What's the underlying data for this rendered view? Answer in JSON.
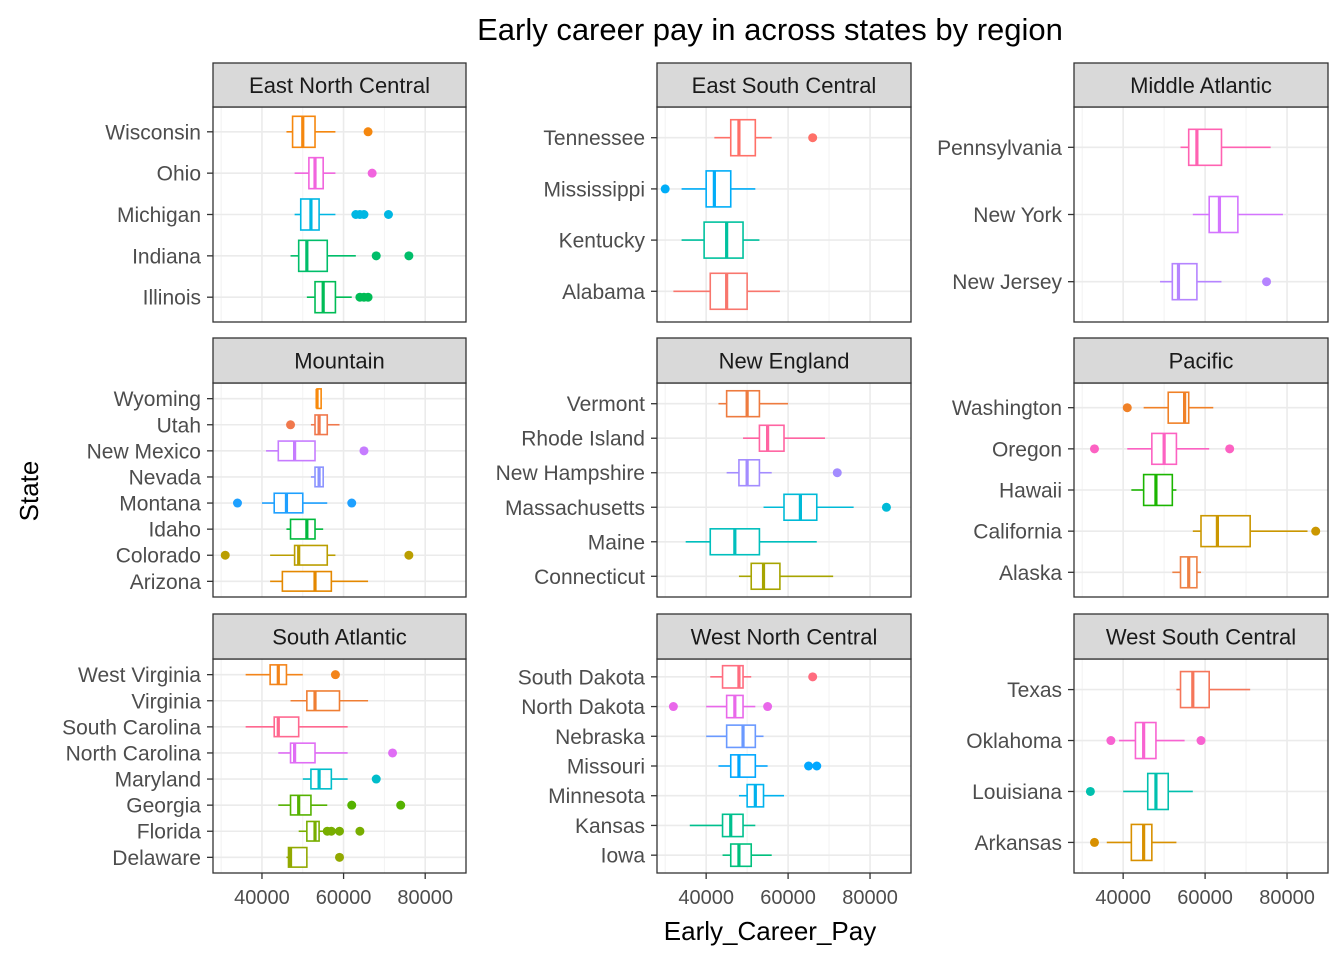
{
  "chart_data": {
    "type": "boxplot",
    "title": "Early career pay in across states by region",
    "xlabel": "Early_Career_Pay",
    "ylabel": "State",
    "xlim": [
      28000,
      90000
    ],
    "x_ticks": [
      40000,
      60000,
      80000
    ],
    "x_tick_labels": [
      "40000",
      "60000",
      "80000"
    ],
    "grid": true,
    "theme": "bw",
    "state_colors": {
      "Alabama": "#F8766D",
      "Alaska": "#EE8044",
      "Arizona": "#E48800",
      "Arkansas": "#D89000",
      "California": "#CB9700",
      "Colorado": "#BA9E00",
      "Connecticut": "#A7A400",
      "Delaware": "#92A900",
      "Florida": "#78AE00",
      "Georgia": "#55B200",
      "Hawaii": "#1BB500",
      "Idaho": "#00B93D",
      "Illinois": "#00BC56",
      "Indiana": "#00BE6A",
      "Iowa": "#00C07D",
      "Kansas": "#00C08E",
      "Kentucky": "#00C19E",
      "Louisiana": "#00C0AE",
      "Maine": "#00BFBD",
      "Maryland": "#00BDCA",
      "Massachusetts": "#00BAD7",
      "Michigan": "#00B7E3",
      "Minnesota": "#00B2EE",
      "Mississippi": "#00ADF8",
      "Missouri": "#00A7FF",
      "Montana": "#1EA0FF",
      "Nebraska": "#6A99FF",
      "Nevada": "#8B93FF",
      "New Hampshire": "#A38CFF",
      "New Jersey": "#B584FF",
      "New Mexico": "#C67CFF",
      "New York": "#D474FF",
      "North Carolina": "#E06DF5",
      "North Dakota": "#E968EA",
      "Ohio": "#F164DE",
      "Oklahoma": "#F863D1",
      "Oregon": "#FC62C2",
      "Pennsylvania": "#FF62B2",
      "Rhode Island": "#FF64A2",
      "South Carolina": "#FF6890",
      "South Dakota": "#FF6C7F",
      "Tennessee": "#FF7068",
      "Texas": "#F5765A",
      "Utah": "#F0784C",
      "Vermont": "#EE7B3F",
      "Virginia": "#EF7E33",
      "Washington": "#F08127",
      "West Virginia": "#F3841A",
      "Wisconsin": "#F5870E",
      "Wyoming": "#F8890B"
    },
    "panels": [
      {
        "region": "East North Central",
        "states": [
          {
            "state": "Illinois",
            "whisker_low": 51000,
            "q1": 53000,
            "median": 55000,
            "q3": 58000,
            "whisker_high": 62000,
            "outliers": [
              64000,
              65000,
              66000
            ]
          },
          {
            "state": "Indiana",
            "whisker_low": 47000,
            "q1": 49000,
            "median": 51000,
            "q3": 56000,
            "whisker_high": 63000,
            "outliers": [
              68000,
              76000
            ]
          },
          {
            "state": "Michigan",
            "whisker_low": 48000,
            "q1": 49500,
            "median": 52000,
            "q3": 54000,
            "whisker_high": 58000,
            "outliers": [
              63000,
              64000,
              65000,
              71000
            ]
          },
          {
            "state": "Ohio",
            "whisker_low": 48000,
            "q1": 51500,
            "median": 53000,
            "q3": 55000,
            "whisker_high": 58000,
            "outliers": [
              67000
            ]
          },
          {
            "state": "Wisconsin",
            "whisker_low": 46000,
            "q1": 47500,
            "median": 50000,
            "q3": 53000,
            "whisker_high": 58000,
            "outliers": [
              66000
            ]
          }
        ]
      },
      {
        "region": "East South Central",
        "states": [
          {
            "state": "Alabama",
            "whisker_low": 32000,
            "q1": 41000,
            "median": 45000,
            "q3": 50000,
            "whisker_high": 58000,
            "outliers": []
          },
          {
            "state": "Kentucky",
            "whisker_low": 34000,
            "q1": 39500,
            "median": 45000,
            "q3": 49000,
            "whisker_high": 53000,
            "outliers": []
          },
          {
            "state": "Mississippi",
            "whisker_low": 34000,
            "q1": 40000,
            "median": 42000,
            "q3": 46000,
            "whisker_high": 52000,
            "outliers": [
              30000
            ]
          },
          {
            "state": "Tennessee",
            "whisker_low": 42000,
            "q1": 46000,
            "median": 48000,
            "q3": 52000,
            "whisker_high": 56000,
            "outliers": [
              66000
            ]
          }
        ]
      },
      {
        "region": "Middle Atlantic",
        "states": [
          {
            "state": "New Jersey",
            "whisker_low": 49000,
            "q1": 52000,
            "median": 53500,
            "q3": 58000,
            "whisker_high": 64000,
            "outliers": [
              75000
            ]
          },
          {
            "state": "New York",
            "whisker_low": 57000,
            "q1": 61000,
            "median": 63500,
            "q3": 68000,
            "whisker_high": 79000,
            "outliers": []
          },
          {
            "state": "Pennsylvania",
            "whisker_low": 54000,
            "q1": 56000,
            "median": 58000,
            "q3": 64000,
            "whisker_high": 76000,
            "outliers": []
          }
        ]
      },
      {
        "region": "Mountain",
        "states": [
          {
            "state": "Arizona",
            "whisker_low": 42000,
            "q1": 45000,
            "median": 53000,
            "q3": 57000,
            "whisker_high": 66000,
            "outliers": []
          },
          {
            "state": "Colorado",
            "whisker_low": 42000,
            "q1": 48000,
            "median": 49000,
            "q3": 56000,
            "whisker_high": 58000,
            "outliers": [
              31000,
              76000
            ]
          },
          {
            "state": "Idaho",
            "whisker_low": 46000,
            "q1": 47000,
            "median": 51000,
            "q3": 53000,
            "whisker_high": 55000,
            "outliers": []
          },
          {
            "state": "Montana",
            "whisker_low": 40000,
            "q1": 43000,
            "median": 46000,
            "q3": 50000,
            "whisker_high": 56000,
            "outliers": [
              34000,
              62000
            ]
          },
          {
            "state": "Nevada",
            "whisker_low": 52000,
            "q1": 53000,
            "median": 54000,
            "q3": 55000,
            "whisker_high": 55000,
            "outliers": []
          },
          {
            "state": "New Mexico",
            "whisker_low": 41000,
            "q1": 44000,
            "median": 48000,
            "q3": 53000,
            "whisker_high": 53000,
            "outliers": [
              65000
            ]
          },
          {
            "state": "Utah",
            "whisker_low": 52000,
            "q1": 53000,
            "median": 54000,
            "q3": 56000,
            "whisker_high": 59000,
            "outliers": [
              47000
            ]
          },
          {
            "state": "Wyoming",
            "whisker_low": 53500,
            "q1": 53500,
            "median": 53500,
            "q3": 54500,
            "whisker_high": 54500,
            "outliers": []
          }
        ]
      },
      {
        "region": "New England",
        "states": [
          {
            "state": "Connecticut",
            "whisker_low": 48000,
            "q1": 51000,
            "median": 54000,
            "q3": 58000,
            "whisker_high": 71000,
            "outliers": []
          },
          {
            "state": "Maine",
            "whisker_low": 35000,
            "q1": 41000,
            "median": 47000,
            "q3": 53000,
            "whisker_high": 67000,
            "outliers": []
          },
          {
            "state": "Massachusetts",
            "whisker_low": 54000,
            "q1": 59000,
            "median": 63000,
            "q3": 67000,
            "whisker_high": 76000,
            "outliers": [
              84000
            ]
          },
          {
            "state": "New Hampshire",
            "whisker_low": 45000,
            "q1": 48000,
            "median": 50000,
            "q3": 53000,
            "whisker_high": 56000,
            "outliers": [
              72000
            ]
          },
          {
            "state": "Rhode Island",
            "whisker_low": 49000,
            "q1": 53000,
            "median": 55000,
            "q3": 59000,
            "whisker_high": 69000,
            "outliers": []
          },
          {
            "state": "Vermont",
            "whisker_low": 43000,
            "q1": 45000,
            "median": 50000,
            "q3": 53000,
            "whisker_high": 60000,
            "outliers": []
          }
        ]
      },
      {
        "region": "Pacific",
        "states": [
          {
            "state": "Alaska",
            "whisker_low": 52000,
            "q1": 54000,
            "median": 56000,
            "q3": 58000,
            "whisker_high": 59000,
            "outliers": []
          },
          {
            "state": "California",
            "whisker_low": 57000,
            "q1": 59000,
            "median": 63000,
            "q3": 71000,
            "whisker_high": 85000,
            "outliers": [
              87000
            ]
          },
          {
            "state": "Hawaii",
            "whisker_low": 42000,
            "q1": 45000,
            "median": 48000,
            "q3": 52000,
            "whisker_high": 53000,
            "outliers": []
          },
          {
            "state": "Oregon",
            "whisker_low": 41000,
            "q1": 47000,
            "median": 50000,
            "q3": 53000,
            "whisker_high": 61000,
            "outliers": [
              33000,
              66000
            ]
          },
          {
            "state": "Washington",
            "whisker_low": 45000,
            "q1": 51000,
            "median": 55000,
            "q3": 56000,
            "whisker_high": 62000,
            "outliers": [
              41000
            ]
          }
        ]
      },
      {
        "region": "South Atlantic",
        "states": [
          {
            "state": "Delaware",
            "whisker_low": 46000,
            "q1": 46500,
            "median": 47000,
            "q3": 51000,
            "whisker_high": 51000,
            "outliers": [
              59000
            ]
          },
          {
            "state": "Florida",
            "whisker_low": 49000,
            "q1": 51000,
            "median": 53000,
            "q3": 54000,
            "whisker_high": 55000,
            "outliers": [
              56000,
              57000,
              59000,
              64000
            ]
          },
          {
            "state": "Georgia",
            "whisker_low": 44000,
            "q1": 47000,
            "median": 49000,
            "q3": 52000,
            "whisker_high": 56000,
            "outliers": [
              62000,
              74000
            ]
          },
          {
            "state": "Maryland",
            "whisker_low": 50000,
            "q1": 52000,
            "median": 54000,
            "q3": 57000,
            "whisker_high": 61000,
            "outliers": [
              68000
            ]
          },
          {
            "state": "North Carolina",
            "whisker_low": 44000,
            "q1": 47000,
            "median": 48000,
            "q3": 53000,
            "whisker_high": 61000,
            "outliers": [
              72000
            ]
          },
          {
            "state": "South Carolina",
            "whisker_low": 36000,
            "q1": 43000,
            "median": 44000,
            "q3": 49000,
            "whisker_high": 61000,
            "outliers": []
          },
          {
            "state": "Virginia",
            "whisker_low": 47000,
            "q1": 51000,
            "median": 53000,
            "q3": 59000,
            "whisker_high": 66000,
            "outliers": []
          },
          {
            "state": "West Virginia",
            "whisker_low": 36000,
            "q1": 42000,
            "median": 44000,
            "q3": 46000,
            "whisker_high": 50000,
            "outliers": [
              58000
            ]
          }
        ]
      },
      {
        "region": "West North Central",
        "states": [
          {
            "state": "Iowa",
            "whisker_low": 44000,
            "q1": 46000,
            "median": 48000,
            "q3": 51000,
            "whisker_high": 56000,
            "outliers": []
          },
          {
            "state": "Kansas",
            "whisker_low": 36000,
            "q1": 44000,
            "median": 46000,
            "q3": 49000,
            "whisker_high": 52000,
            "outliers": []
          },
          {
            "state": "Minnesota",
            "whisker_low": 48000,
            "q1": 50000,
            "median": 52000,
            "q3": 54000,
            "whisker_high": 59000,
            "outliers": []
          },
          {
            "state": "Missouri",
            "whisker_low": 43000,
            "q1": 46000,
            "median": 48000,
            "q3": 52000,
            "whisker_high": 55000,
            "outliers": [
              65000,
              67000
            ]
          },
          {
            "state": "Nebraska",
            "whisker_low": 40000,
            "q1": 45000,
            "median": 49000,
            "q3": 52000,
            "whisker_high": 54000,
            "outliers": []
          },
          {
            "state": "North Dakota",
            "whisker_low": 40000,
            "q1": 45000,
            "median": 47000,
            "q3": 49000,
            "whisker_high": 52000,
            "outliers": [
              32000,
              55000
            ]
          },
          {
            "state": "South Dakota",
            "whisker_low": 41000,
            "q1": 44000,
            "median": 48000,
            "q3": 49000,
            "whisker_high": 51000,
            "outliers": [
              66000
            ]
          }
        ]
      },
      {
        "region": "West South Central",
        "states": [
          {
            "state": "Arkansas",
            "whisker_low": 36000,
            "q1": 42000,
            "median": 45000,
            "q3": 47000,
            "whisker_high": 53000,
            "outliers": [
              33000
            ]
          },
          {
            "state": "Louisiana",
            "whisker_low": 40000,
            "q1": 46000,
            "median": 48000,
            "q3": 51000,
            "whisker_high": 57000,
            "outliers": [
              32000
            ]
          },
          {
            "state": "Oklahoma",
            "whisker_low": 39000,
            "q1": 43000,
            "median": 45000,
            "q3": 48000,
            "whisker_high": 55000,
            "outliers": [
              37000,
              59000
            ]
          },
          {
            "state": "Texas",
            "whisker_low": 53000,
            "q1": 54000,
            "median": 57000,
            "q3": 61000,
            "whisker_high": 71000,
            "outliers": []
          }
        ]
      }
    ]
  }
}
